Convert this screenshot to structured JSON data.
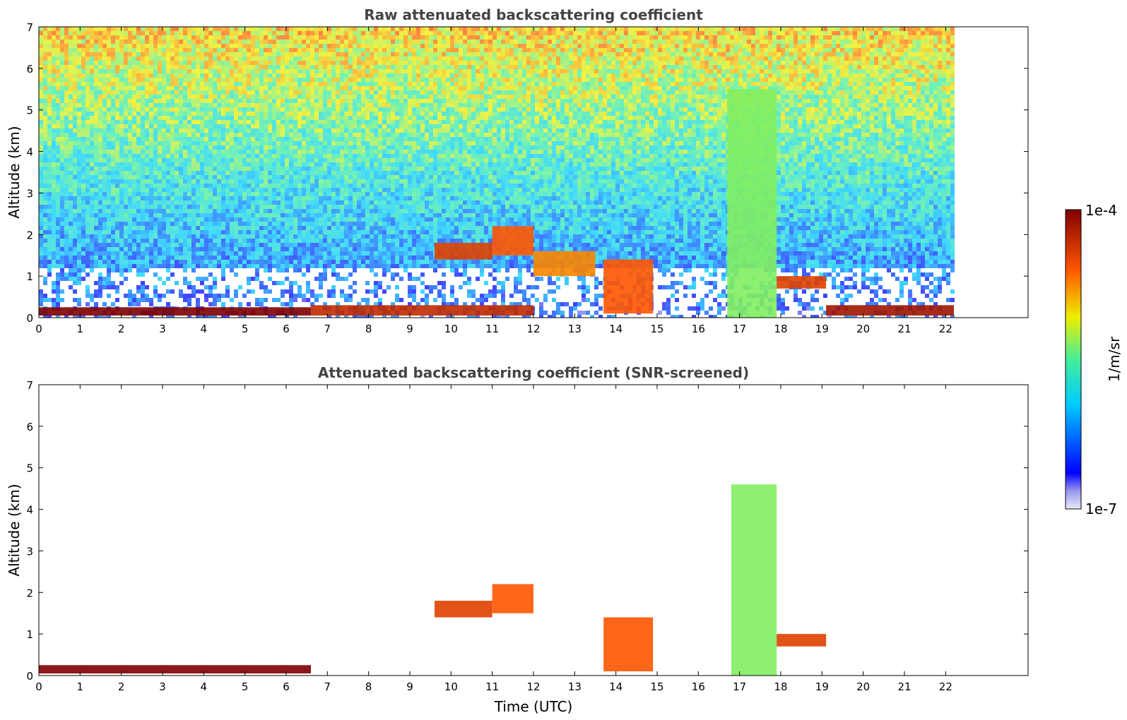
{
  "chart_data": [
    {
      "type": "heatmap",
      "title": "Raw attenuated backscattering coefficient",
      "xlabel": "",
      "ylabel": "Altitude (km)",
      "xlim": [
        0,
        24
      ],
      "ylim": [
        0,
        7
      ],
      "xticks": [
        "0",
        "1",
        "2",
        "3",
        "4",
        "5",
        "6",
        "7",
        "8",
        "9",
        "10",
        "11",
        "12",
        "13",
        "14",
        "15",
        "16",
        "17",
        "18",
        "19",
        "20",
        "21",
        "22"
      ],
      "yticks": [
        "0",
        "1",
        "2",
        "3",
        "4",
        "5",
        "6",
        "7"
      ],
      "data_end_time": 22.2,
      "layers": [
        {
          "t0": 0.0,
          "t1": 6.6,
          "base_km": 0.05,
          "top_km": 0.25,
          "level": 1.0
        },
        {
          "t0": 6.6,
          "t1": 12.0,
          "base_km": 0.05,
          "top_km": 0.3,
          "level": 0.9
        },
        {
          "t0": 9.6,
          "t1": 11.0,
          "base_km": 1.4,
          "top_km": 1.8,
          "level": 0.85
        },
        {
          "t0": 11.0,
          "t1": 12.0,
          "base_km": 1.5,
          "top_km": 2.2,
          "level": 0.8
        },
        {
          "t0": 12.0,
          "t1": 13.5,
          "base_km": 1.0,
          "top_km": 1.6,
          "level": 0.75
        },
        {
          "t0": 13.7,
          "t1": 14.9,
          "base_km": 0.1,
          "top_km": 1.4,
          "level": 0.8
        },
        {
          "t0": 16.7,
          "t1": 17.9,
          "base_km": 0.0,
          "top_km": 5.5,
          "level": 0.55
        },
        {
          "t0": 17.9,
          "t1": 19.1,
          "base_km": 0.7,
          "top_km": 1.0,
          "level": 0.85
        },
        {
          "t0": 19.1,
          "t1": 22.2,
          "base_km": 0.05,
          "top_km": 0.3,
          "level": 0.95
        }
      ]
    },
    {
      "type": "heatmap",
      "title": "Attenuated backscattering coefficient (SNR-screened)",
      "xlabel": "Time (UTC)",
      "ylabel": "Altitude (km)",
      "xlim": [
        0,
        24
      ],
      "ylim": [
        0,
        7
      ],
      "xticks": [
        "0",
        "1",
        "2",
        "3",
        "4",
        "5",
        "6",
        "7",
        "8",
        "9",
        "10",
        "11",
        "12",
        "13",
        "14",
        "15",
        "16",
        "17",
        "18",
        "19",
        "20",
        "21",
        "22"
      ],
      "yticks": [
        "0",
        "1",
        "2",
        "3",
        "4",
        "5",
        "6",
        "7"
      ],
      "data_end_time": 22.2,
      "layers": [
        {
          "t0": 0.0,
          "t1": 6.6,
          "base_km": 0.05,
          "top_km": 0.25,
          "level": 1.0
        },
        {
          "t0": 9.6,
          "t1": 11.0,
          "base_km": 1.4,
          "top_km": 1.8,
          "level": 0.85
        },
        {
          "t0": 11.0,
          "t1": 12.0,
          "base_km": 1.5,
          "top_km": 2.2,
          "level": 0.8
        },
        {
          "t0": 13.7,
          "t1": 14.9,
          "base_km": 0.1,
          "top_km": 1.4,
          "level": 0.8
        },
        {
          "t0": 16.8,
          "t1": 17.9,
          "base_km": 0.0,
          "top_km": 4.6,
          "level": 0.55
        },
        {
          "t0": 17.9,
          "t1": 19.1,
          "base_km": 0.7,
          "top_km": 1.0,
          "level": 0.85
        }
      ]
    }
  ],
  "colorbar": {
    "label": "1/m/sr",
    "min_label": "1e-7",
    "max_label": "1e-4",
    "scale": "log"
  }
}
